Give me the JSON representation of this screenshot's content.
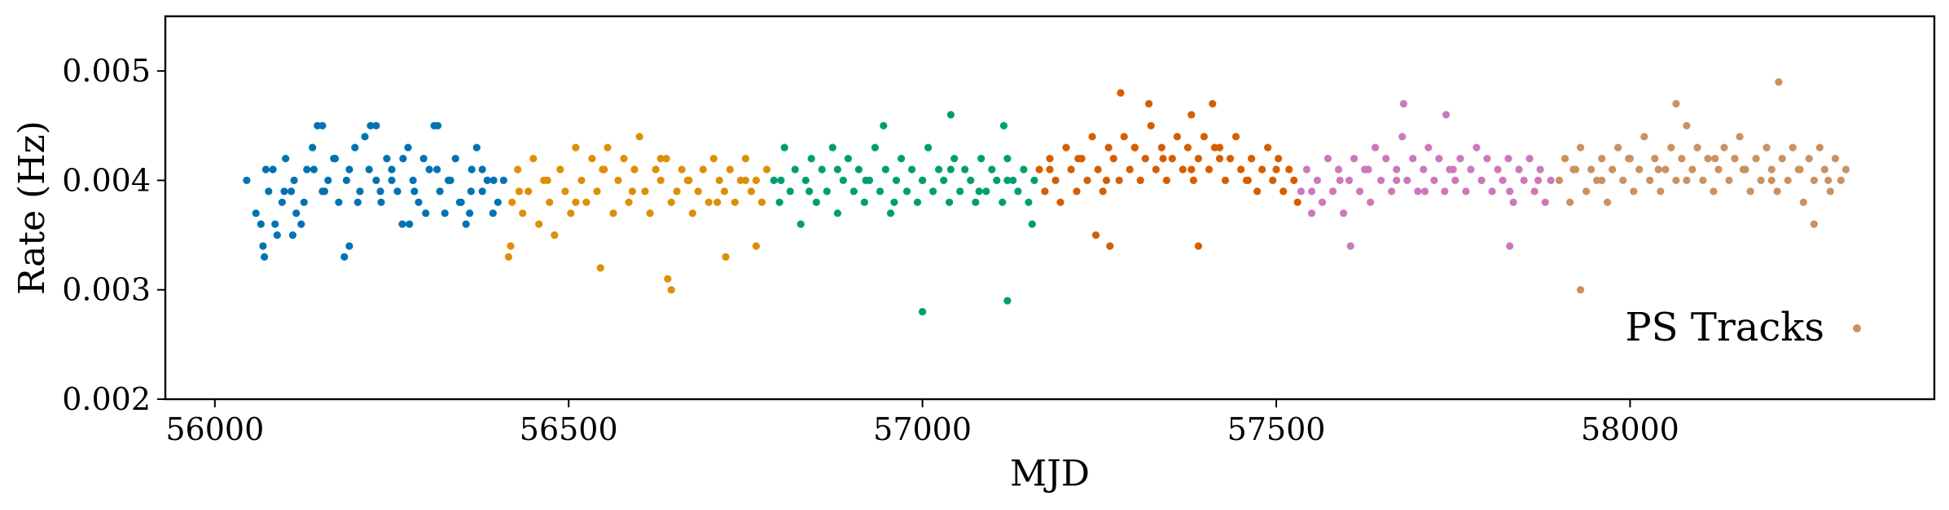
{
  "chart_data": {
    "type": "scatter",
    "title": "",
    "xlabel": "MJD",
    "ylabel": "Rate (Hz)",
    "xlim": [
      55930,
      58430
    ],
    "ylim": [
      0.002,
      0.0055
    ],
    "xticks": [
      {
        "value": 56000,
        "label": "56000"
      },
      {
        "value": 56500,
        "label": "56500"
      },
      {
        "value": 57000,
        "label": "57000"
      },
      {
        "value": 57500,
        "label": "57500"
      },
      {
        "value": 58000,
        "label": "58000"
      }
    ],
    "yticks": [
      {
        "value": 0.002,
        "label": "0.002"
      },
      {
        "value": 0.003,
        "label": "0.003"
      },
      {
        "value": 0.004,
        "label": "0.004"
      },
      {
        "value": 0.005,
        "label": "0.005"
      }
    ],
    "grid": false,
    "legend": {
      "position": "lower-right",
      "label": "PS Tracks",
      "color": "#ce925f"
    },
    "series": [
      {
        "color": "#0173b2",
        "x": [
          56045,
          56058,
          56065,
          56070,
          56076,
          56082,
          56088,
          56095,
          56100,
          56108,
          56115,
          56122,
          56130,
          56138,
          56145,
          56152,
          56160,
          56168,
          56175,
          56183,
          56190,
          56198,
          56205,
          56212,
          56220,
          56228,
          56235,
          56243,
          56250,
          56258,
          56265,
          56273,
          56280,
          56288,
          56295,
          56303,
          56310,
          56318,
          56325,
          56333,
          56340,
          56348,
          56355,
          56363,
          56370,
          56378,
          56385,
          56393,
          56400,
          56408,
          56072,
          56085,
          56098,
          56112,
          56126,
          56140,
          56155,
          56170,
          56186,
          56202,
          56218,
          56234,
          56250,
          56266,
          56282,
          56298,
          56314,
          56330,
          56346,
          56362,
          56378,
          56394,
          56152,
          56228,
          56315,
          56068,
          56110,
          56190,
          56275,
          56360
        ],
        "y": [
          0.004,
          0.0037,
          0.0036,
          0.0033,
          0.0039,
          0.0041,
          0.0035,
          0.0038,
          0.0042,
          0.0039,
          0.0037,
          0.0036,
          0.0041,
          0.0043,
          0.0045,
          0.0039,
          0.004,
          0.0042,
          0.0038,
          0.0033,
          0.0041,
          0.0043,
          0.0039,
          0.0044,
          0.0045,
          0.004,
          0.0038,
          0.0042,
          0.0041,
          0.0039,
          0.0036,
          0.0043,
          0.004,
          0.0038,
          0.0042,
          0.0041,
          0.0045,
          0.0039,
          0.0037,
          0.004,
          0.0042,
          0.0038,
          0.0036,
          0.0041,
          0.0043,
          0.0039,
          0.004,
          0.0037,
          0.0038,
          0.004,
          0.0041,
          0.0036,
          0.0039,
          0.004,
          0.0038,
          0.0041,
          0.0039,
          0.0042,
          0.004,
          0.0038,
          0.0041,
          0.0039,
          0.004,
          0.0042,
          0.0039,
          0.0037,
          0.0041,
          0.004,
          0.0038,
          0.0039,
          0.0041,
          0.004,
          0.0045,
          0.0045,
          0.0045,
          0.0034,
          0.0035,
          0.0034,
          0.0036,
          0.0037
        ]
      },
      {
        "color": "#de8f05",
        "x": [
          56415,
          56420,
          56428,
          56435,
          56443,
          56450,
          56458,
          56465,
          56473,
          56480,
          56488,
          56495,
          56503,
          56510,
          56518,
          56525,
          56533,
          56540,
          56548,
          56555,
          56563,
          56570,
          56578,
          56585,
          56593,
          56600,
          56608,
          56615,
          56623,
          56630,
          56638,
          56645,
          56653,
          56660,
          56668,
          56675,
          56683,
          56690,
          56698,
          56705,
          56713,
          56720,
          56728,
          56735,
          56743,
          56750,
          56758,
          56765,
          56773,
          56780,
          56430,
          56470,
          56510,
          56550,
          56590,
          56630,
          56670,
          56710,
          56750,
          56418,
          56545,
          56640,
          56645,
          56722,
          56765
        ],
        "y": [
          0.0033,
          0.0038,
          0.0041,
          0.0037,
          0.0039,
          0.0042,
          0.0036,
          0.004,
          0.0038,
          0.0035,
          0.0041,
          0.0039,
          0.0037,
          0.0043,
          0.004,
          0.0038,
          0.0042,
          0.0039,
          0.0041,
          0.0043,
          0.0037,
          0.004,
          0.0042,
          0.0038,
          0.0041,
          0.0044,
          0.0039,
          0.0037,
          0.0041,
          0.004,
          0.0042,
          0.0038,
          0.0039,
          0.0041,
          0.004,
          0.0037,
          0.0039,
          0.0041,
          0.0038,
          0.0042,
          0.004,
          0.0039,
          0.0041,
          0.0038,
          0.004,
          0.0042,
          0.0039,
          0.004,
          0.0038,
          0.0041,
          0.0039,
          0.004,
          0.0038,
          0.0041,
          0.0039,
          0.0042,
          0.004,
          0.0038,
          0.004,
          0.0034,
          0.0032,
          0.0031,
          0.003,
          0.0033,
          0.0034
        ]
      },
      {
        "color": "#029e73",
        "x": [
          56790,
          56798,
          56805,
          56813,
          56820,
          56828,
          56835,
          56843,
          56850,
          56858,
          56865,
          56873,
          56880,
          56888,
          56895,
          56903,
          56910,
          56918,
          56925,
          56933,
          56940,
          56948,
          56955,
          56963,
          56970,
          56978,
          56985,
          56993,
          57000,
          57008,
          57015,
          57023,
          57030,
          57038,
          57045,
          57053,
          57060,
          57068,
          57075,
          57083,
          57090,
          57098,
          57105,
          57113,
          57120,
          57128,
          57135,
          57143,
          57150,
          57158,
          56800,
          56840,
          56880,
          56920,
          56960,
          57000,
          57040,
          57080,
          57120,
          57155,
          56945,
          57040,
          57115,
          57000,
          57120
        ],
        "y": [
          0.004,
          0.0038,
          0.0043,
          0.0039,
          0.0041,
          0.0036,
          0.004,
          0.0042,
          0.0038,
          0.0041,
          0.0039,
          0.0043,
          0.0037,
          0.004,
          0.0042,
          0.0039,
          0.0041,
          0.0038,
          0.004,
          0.0043,
          0.0039,
          0.0041,
          0.0037,
          0.004,
          0.0042,
          0.0039,
          0.0041,
          0.0038,
          0.004,
          0.0043,
          0.0039,
          0.0041,
          0.004,
          0.0038,
          0.0042,
          0.0039,
          0.0041,
          0.004,
          0.0038,
          0.0042,
          0.0039,
          0.0041,
          0.004,
          0.0038,
          0.0042,
          0.004,
          0.0039,
          0.0041,
          0.0038,
          0.004,
          0.004,
          0.0039,
          0.0041,
          0.004,
          0.0038,
          0.004,
          0.0041,
          0.0039,
          0.004,
          0.0036,
          0.0045,
          0.0046,
          0.0045,
          0.0028,
          0.0029
        ]
      },
      {
        "color": "#d55e00",
        "x": [
          57165,
          57173,
          57180,
          57188,
          57195,
          57203,
          57210,
          57218,
          57225,
          57233,
          57240,
          57248,
          57255,
          57263,
          57270,
          57278,
          57285,
          57293,
          57300,
          57308,
          57315,
          57323,
          57330,
          57338,
          57345,
          57353,
          57360,
          57368,
          57375,
          57383,
          57390,
          57398,
          57405,
          57413,
          57420,
          57428,
          57435,
          57443,
          57450,
          57458,
          57465,
          57473,
          57480,
          57488,
          57495,
          57503,
          57510,
          57518,
          57525,
          57530,
          57180,
          57220,
          57260,
          57300,
          57340,
          57380,
          57420,
          57460,
          57500,
          57280,
          57320,
          57380,
          57410,
          57245,
          57265,
          57390
        ],
        "y": [
          0.0041,
          0.0039,
          0.0042,
          0.004,
          0.0038,
          0.0043,
          0.0041,
          0.0039,
          0.0042,
          0.004,
          0.0044,
          0.0041,
          0.0039,
          0.0043,
          0.0042,
          0.004,
          0.0044,
          0.0041,
          0.0043,
          0.004,
          0.0042,
          0.0045,
          0.0041,
          0.0043,
          0.004,
          0.0042,
          0.0044,
          0.0041,
          0.0043,
          0.004,
          0.0042,
          0.0044,
          0.0041,
          0.0043,
          0.0042,
          0.004,
          0.0042,
          0.0044,
          0.0041,
          0.004,
          0.0042,
          0.0039,
          0.0041,
          0.0043,
          0.004,
          0.0042,
          0.0039,
          0.0041,
          0.004,
          0.0038,
          0.0041,
          0.0042,
          0.004,
          0.0043,
          0.0042,
          0.0041,
          0.0043,
          0.004,
          0.0041,
          0.0048,
          0.0047,
          0.0046,
          0.0047,
          0.0035,
          0.0034,
          0.0034
        ]
      },
      {
        "color": "#cc78bc",
        "x": [
          57535,
          57543,
          57550,
          57558,
          57565,
          57573,
          57580,
          57588,
          57595,
          57603,
          57610,
          57618,
          57625,
          57633,
          57640,
          57648,
          57655,
          57663,
          57670,
          57678,
          57685,
          57693,
          57700,
          57708,
          57715,
          57723,
          57730,
          57738,
          57745,
          57753,
          57760,
          57768,
          57775,
          57783,
          57790,
          57798,
          57805,
          57813,
          57820,
          57828,
          57835,
          57843,
          57850,
          57858,
          57865,
          57873,
          57880,
          57888,
          57550,
          57590,
          57630,
          57670,
          57710,
          57750,
          57790,
          57830,
          57870,
          57680,
          57740,
          57605,
          57830
        ],
        "y": [
          0.0039,
          0.0041,
          0.0037,
          0.004,
          0.0038,
          0.0042,
          0.0039,
          0.0041,
          0.0037,
          0.004,
          0.0042,
          0.0039,
          0.0041,
          0.0038,
          0.0043,
          0.004,
          0.0042,
          0.0039,
          0.0041,
          0.0044,
          0.004,
          0.0042,
          0.0039,
          0.0041,
          0.0043,
          0.004,
          0.0042,
          0.0039,
          0.0041,
          0.004,
          0.0042,
          0.0039,
          0.0041,
          0.0043,
          0.004,
          0.0042,
          0.0039,
          0.0041,
          0.004,
          0.0042,
          0.0038,
          0.0041,
          0.004,
          0.0042,
          0.0039,
          0.0041,
          0.0038,
          0.004,
          0.0039,
          0.004,
          0.0041,
          0.004,
          0.0039,
          0.0041,
          0.004,
          0.0039,
          0.004,
          0.0047,
          0.0046,
          0.0034,
          0.0034
        ]
      },
      {
        "color": "#ca9161",
        "x": [
          57900,
          57908,
          57915,
          57923,
          57930,
          57938,
          57945,
          57953,
          57960,
          57968,
          57975,
          57983,
          57990,
          57998,
          58005,
          58013,
          58020,
          58028,
          58035,
          58043,
          58050,
          58058,
          58065,
          58073,
          58080,
          58088,
          58095,
          58103,
          58110,
          58118,
          58125,
          58133,
          58140,
          58148,
          58155,
          58163,
          58170,
          58178,
          58185,
          58193,
          58200,
          58208,
          58215,
          58223,
          58230,
          58238,
          58245,
          58253,
          58260,
          58268,
          58275,
          58283,
          58290,
          58298,
          58305,
          57920,
          57960,
          58000,
          58040,
          58080,
          58120,
          58160,
          58200,
          58240,
          58280,
          58210,
          58065,
          57930,
          58260
        ],
        "y": [
          0.004,
          0.0042,
          0.0038,
          0.0041,
          0.0043,
          0.0039,
          0.0041,
          0.004,
          0.0042,
          0.0038,
          0.0041,
          0.0043,
          0.004,
          0.0042,
          0.0039,
          0.0041,
          0.0044,
          0.004,
          0.0042,
          0.0039,
          0.0041,
          0.0043,
          0.004,
          0.0042,
          0.0045,
          0.0041,
          0.0043,
          0.004,
          0.0042,
          0.0039,
          0.0041,
          0.0043,
          0.004,
          0.0042,
          0.0044,
          0.0041,
          0.0039,
          0.0042,
          0.004,
          0.0043,
          0.0041,
          0.0039,
          0.0042,
          0.004,
          0.0043,
          0.0041,
          0.0038,
          0.0042,
          0.004,
          0.0043,
          0.0041,
          0.0039,
          0.0042,
          0.004,
          0.0041,
          0.0041,
          0.004,
          0.0042,
          0.0041,
          0.004,
          0.0042,
          0.0041,
          0.004,
          0.0041,
          0.004,
          0.0049,
          0.0047,
          0.003,
          0.0036
        ]
      }
    ]
  }
}
